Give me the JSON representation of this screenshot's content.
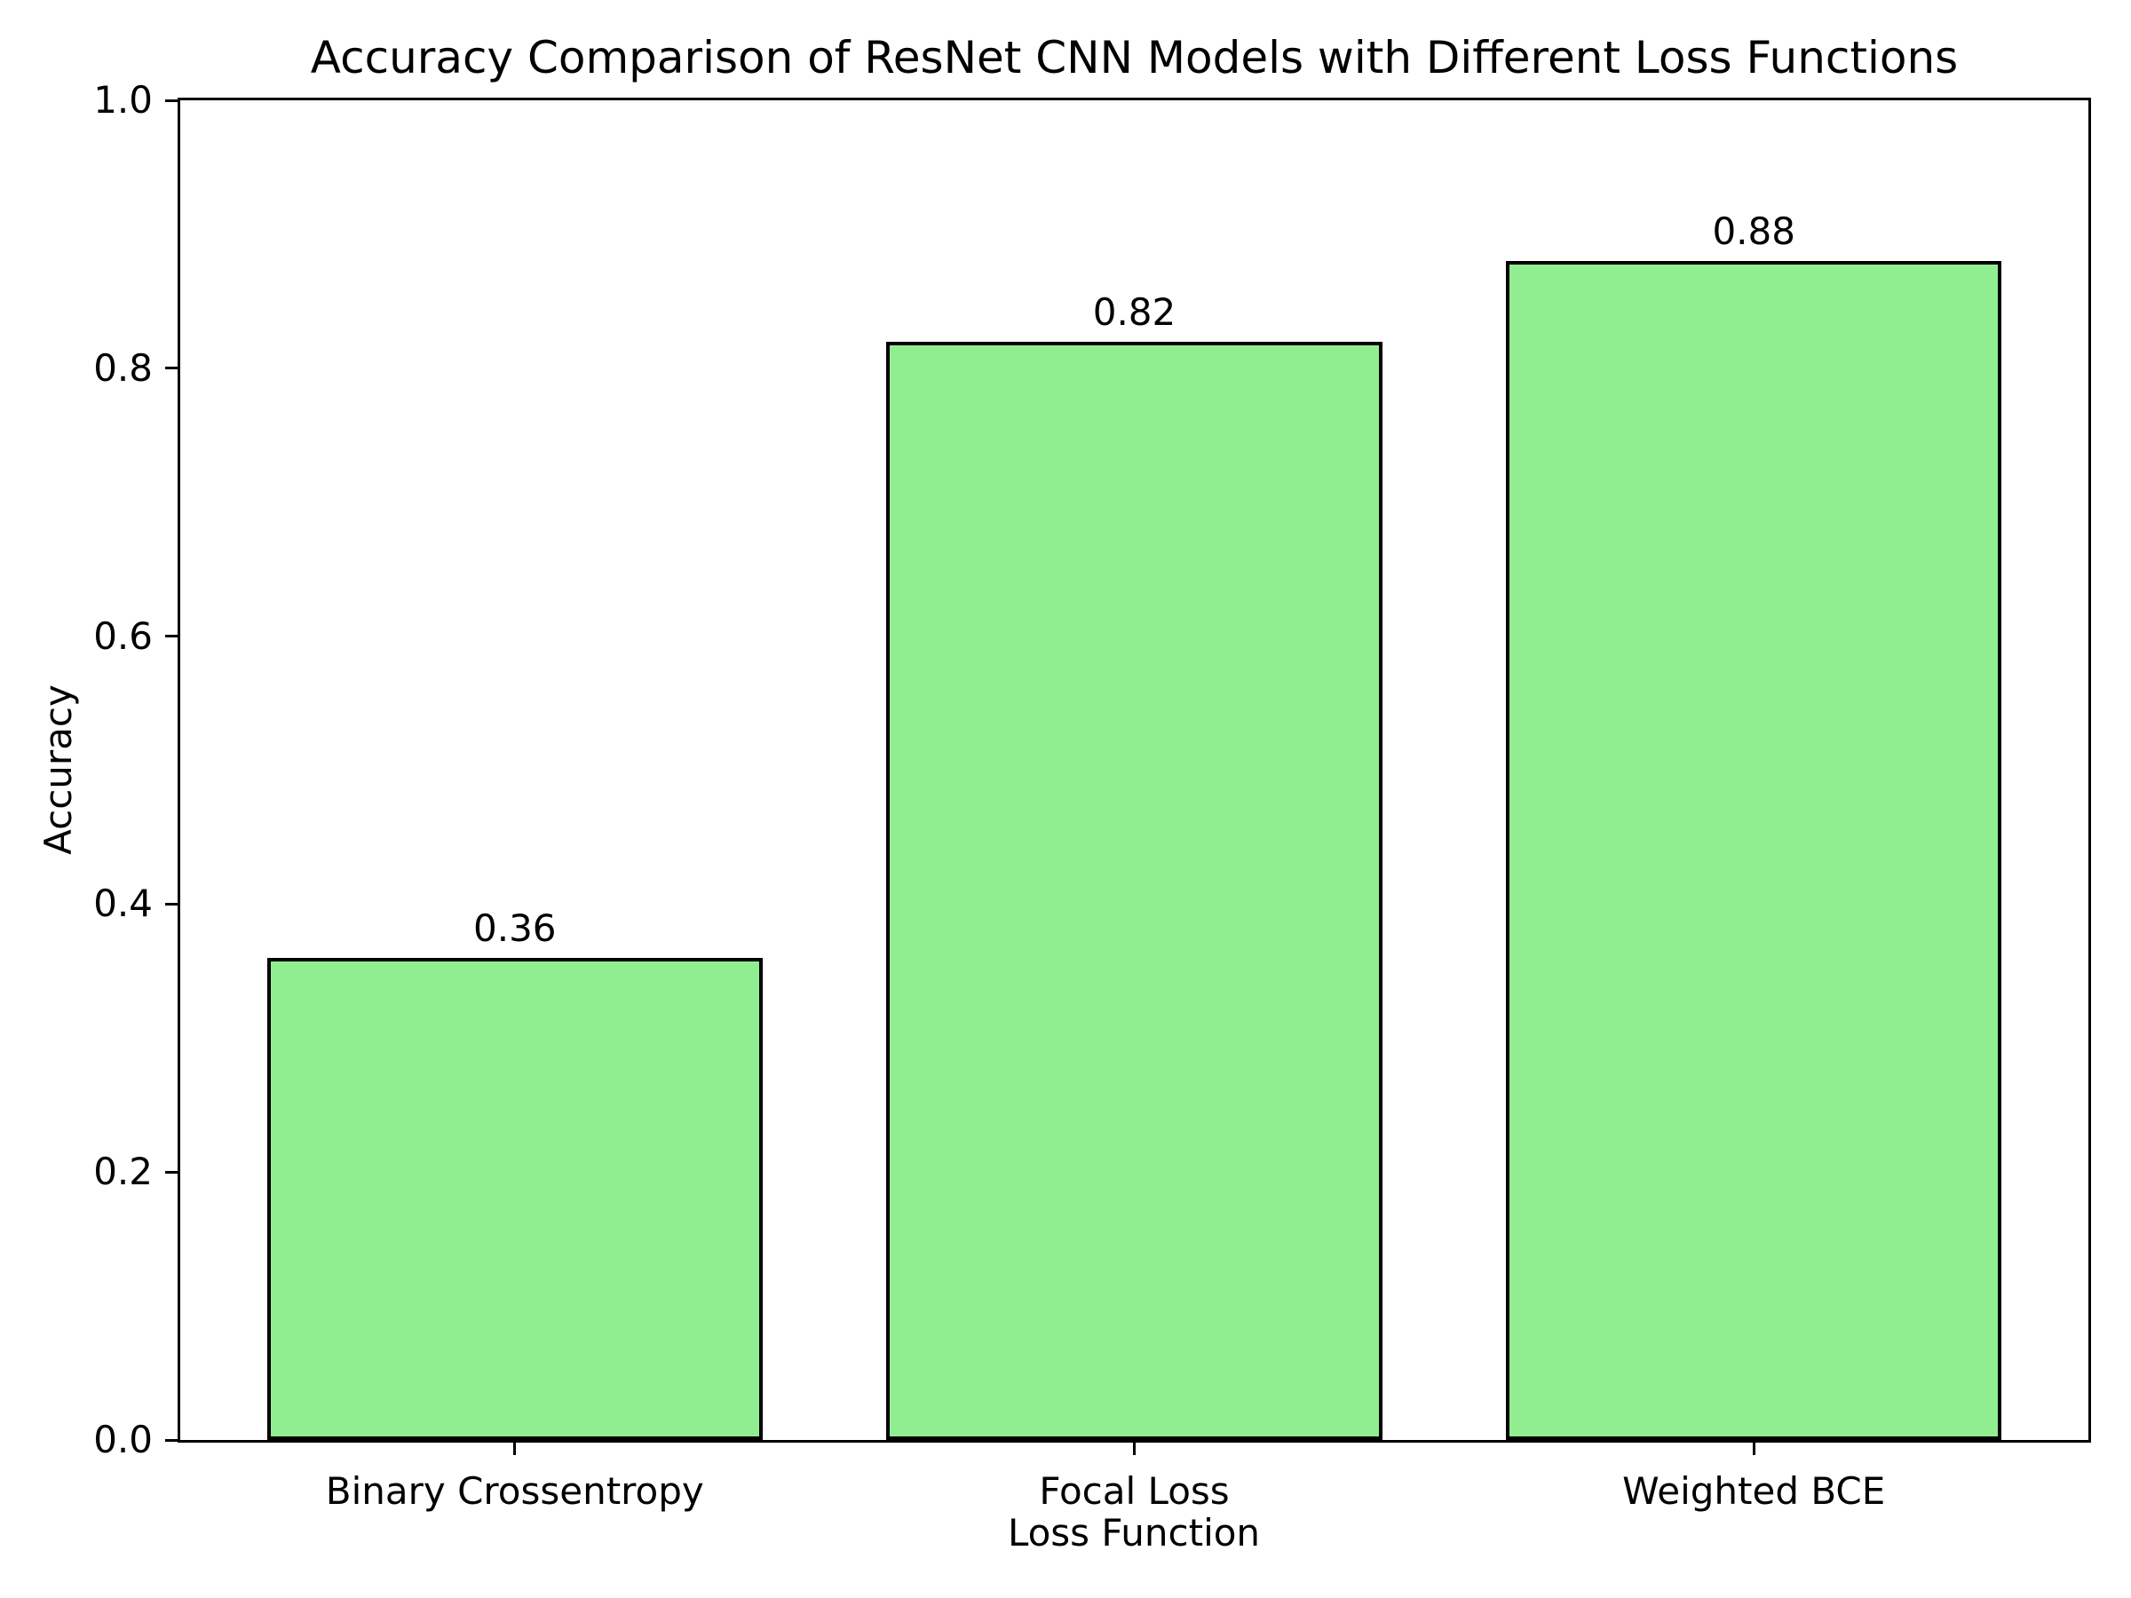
{
  "chart_data": {
    "type": "bar",
    "title": "Accuracy Comparison of ResNet CNN Models with Different Loss Functions",
    "xlabel": "Loss Function",
    "ylabel": "Accuracy",
    "categories": [
      "Binary Crossentropy",
      "Focal Loss",
      "Weighted BCE"
    ],
    "values": [
      0.36,
      0.82,
      0.88
    ],
    "bar_value_labels": [
      "0.36",
      "0.82",
      "0.88"
    ],
    "ylim": [
      0.0,
      1.0
    ],
    "yticks": [
      0.0,
      0.2,
      0.4,
      0.6,
      0.8,
      1.0
    ],
    "ytick_labels": [
      "0.0",
      "0.2",
      "0.4",
      "0.6",
      "0.8",
      "1.0"
    ],
    "grid": false,
    "legend_position": "none",
    "bar_color": "#90EE90",
    "bar_edge_color": "#000000",
    "background_color": "#ffffff",
    "text_color": "#000000"
  }
}
